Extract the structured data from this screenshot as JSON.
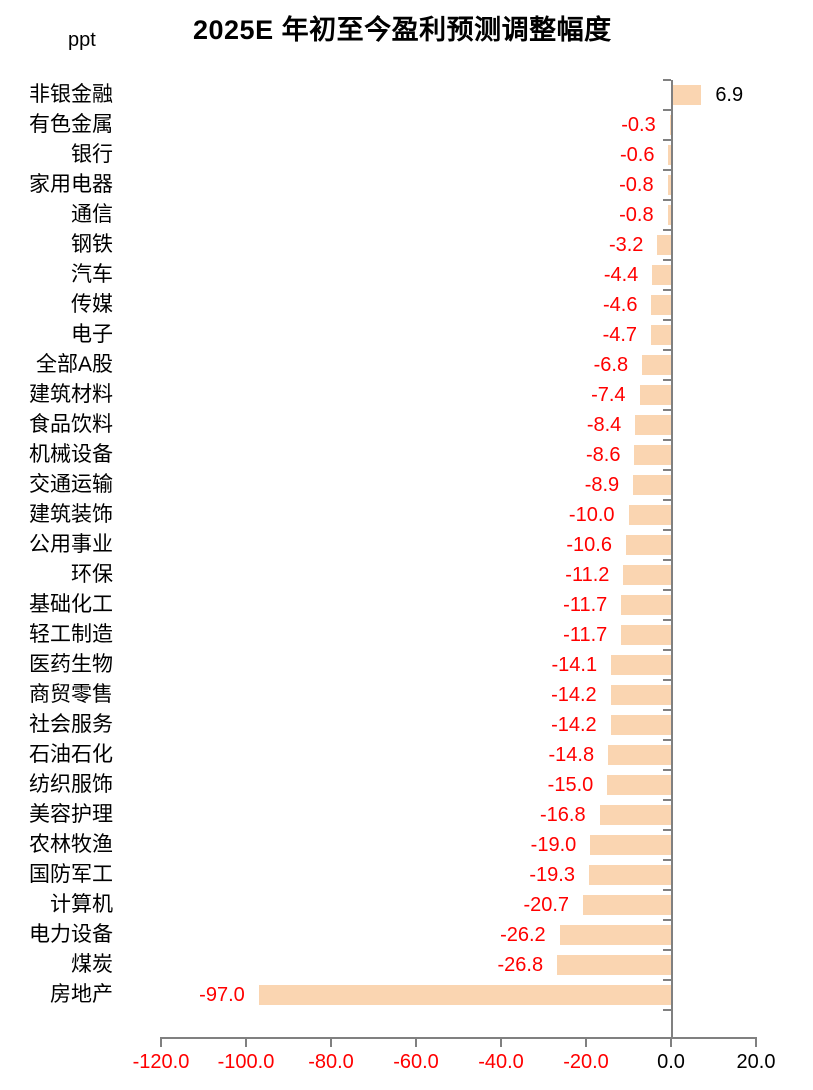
{
  "header": {
    "unit_label": "ppt",
    "title": "2025E 年初至今盈利预测调整幅度"
  },
  "chart_data": {
    "type": "bar",
    "orientation": "horizontal",
    "title": "2025E 年初至今盈利预测调整幅度",
    "unit": "ppt",
    "grid": false,
    "legend_position": "none",
    "categories": [
      "非银金融",
      "有色金属",
      "银行",
      "家用电器",
      "通信",
      "钢铁",
      "汽车",
      "传媒",
      "电子",
      "全部A股",
      "建筑材料",
      "食品饮料",
      "机械设备",
      "交通运输",
      "建筑装饰",
      "公用事业",
      "环保",
      "基础化工",
      "轻工制造",
      "医药生物",
      "商贸零售",
      "社会服务",
      "石油石化",
      "纺织服饰",
      "美容护理",
      "农林牧渔",
      "国防军工",
      "计算机",
      "电力设备",
      "煤炭",
      "房地产"
    ],
    "values": [
      6.9,
      -0.3,
      -0.6,
      -0.8,
      -0.8,
      -3.2,
      -4.4,
      -4.6,
      -4.7,
      -6.8,
      -7.4,
      -8.4,
      -8.6,
      -8.9,
      -10.0,
      -10.6,
      -11.2,
      -11.7,
      -11.7,
      -14.1,
      -14.2,
      -14.2,
      -14.8,
      -15.0,
      -16.8,
      -19.0,
      -19.3,
      -20.7,
      -26.2,
      -26.8,
      -97.0
    ],
    "value_labels": [
      "6.9",
      "-0.3",
      "-0.6",
      "-0.8",
      "-0.8",
      "-3.2",
      "-4.4",
      "-4.6",
      "-4.7",
      "-6.8",
      "-7.4",
      "-8.4",
      "-8.6",
      "-8.9",
      "-10.0",
      "-10.6",
      "-11.2",
      "-11.7",
      "-11.7",
      "-14.1",
      "-14.2",
      "-14.2",
      "-14.8",
      "-15.0",
      "-16.8",
      "-19.0",
      "-19.3",
      "-20.7",
      "-26.2",
      "-26.8",
      "-97.0"
    ],
    "x_axis": {
      "range": [
        -120,
        20
      ],
      "ticks": [
        -120,
        -100,
        -80,
        -60,
        -40,
        -20,
        0,
        20
      ],
      "tick_labels": [
        "-120.0",
        "-100.0",
        "-80.0",
        "-60.0",
        "-40.0",
        "-20.0",
        "0.0",
        "20.0"
      ]
    },
    "colors": {
      "bar_fill": "#FAD5B1",
      "negative_text": "#FF0000",
      "positive_text": "#000000",
      "axis_line": "#808080"
    }
  }
}
